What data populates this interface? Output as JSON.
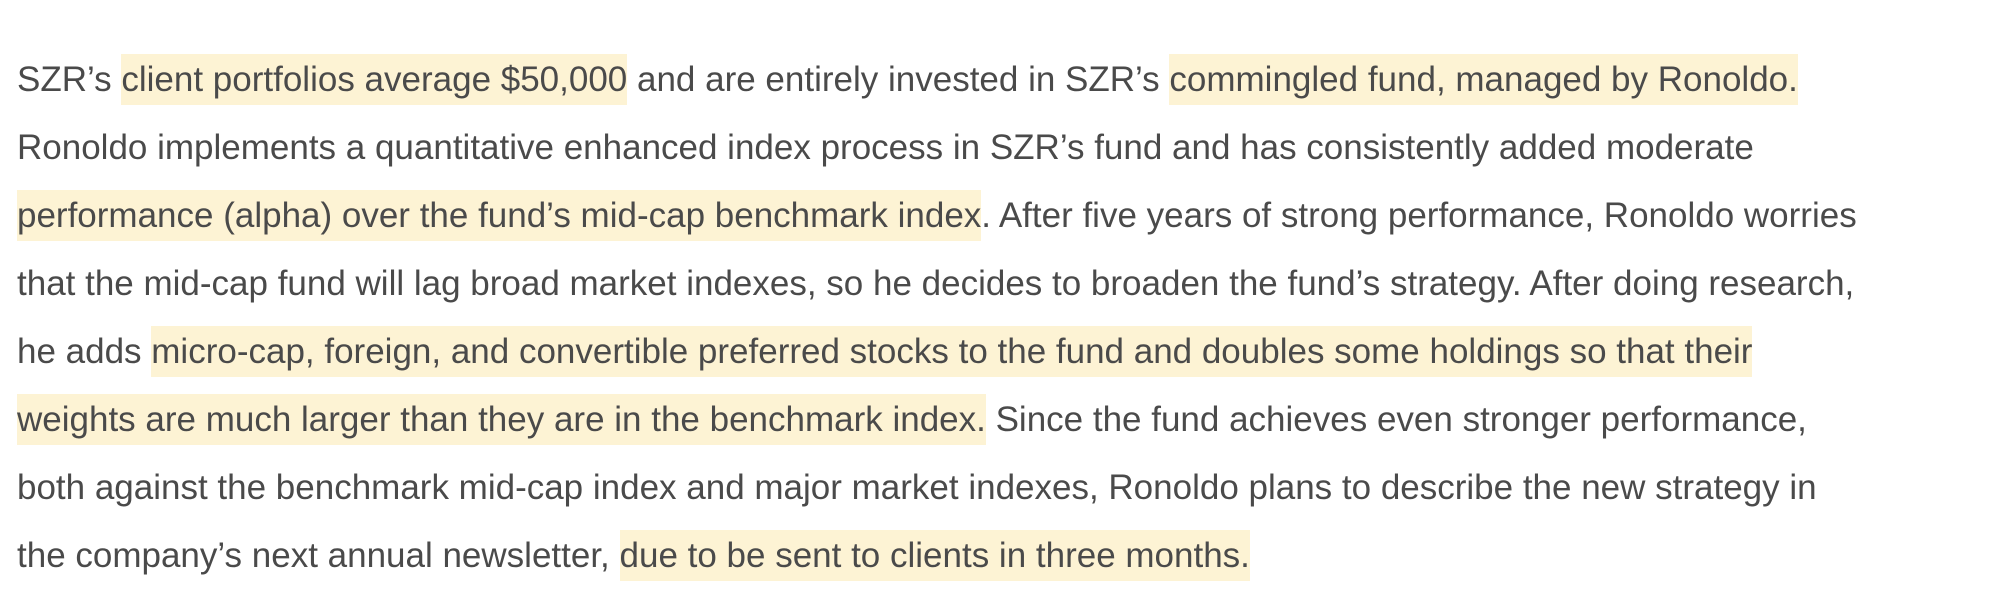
{
  "passage": {
    "lines": [
      {
        "segments": [
          {
            "text": "SZR’s ",
            "highlight": false
          },
          {
            "text": "client portfolios average $50,000",
            "highlight": true
          },
          {
            "text": " and are entirely invested in SZR’s ",
            "highlight": false
          },
          {
            "text": "commingled fund, managed by Ronoldo.",
            "highlight": true
          }
        ]
      },
      {
        "segments": [
          {
            "text": "Ronoldo implements a quantitative enhanced index process in SZR’s fund and has consistently added moderate",
            "highlight": false
          }
        ]
      },
      {
        "segments": [
          {
            "text": "performance (alpha) over the fund’s mid-cap benchmark index",
            "highlight": true
          },
          {
            "text": ". After five years of strong performance, Ronoldo worries",
            "highlight": false
          }
        ]
      },
      {
        "segments": [
          {
            "text": "that the mid-cap fund will lag broad market indexes, so he decides to broaden the fund’s strategy. After doing research,",
            "highlight": false
          }
        ]
      },
      {
        "segments": [
          {
            "text": "he adds ",
            "highlight": false
          },
          {
            "text": "micro-cap, foreign, and convertible preferred stocks to the fund and doubles some holdings so that their",
            "highlight": true
          }
        ]
      },
      {
        "segments": [
          {
            "text": "weights are much larger than they are in the benchmark index.",
            "highlight": true
          },
          {
            "text": " Since the fund achieves even stronger performance,",
            "highlight": false
          }
        ]
      },
      {
        "segments": [
          {
            "text": "both against the benchmark mid-cap index and major market indexes, Ronoldo plans to describe the new strategy in",
            "highlight": false
          }
        ]
      },
      {
        "segments": [
          {
            "text": "the company’s next annual newsletter, ",
            "highlight": false
          },
          {
            "text": "due to be sent to clients in three months.",
            "highlight": true
          }
        ]
      }
    ]
  },
  "colors": {
    "text": "#4a4a4a",
    "highlight": "#fdf3d4",
    "background": "#ffffff"
  }
}
